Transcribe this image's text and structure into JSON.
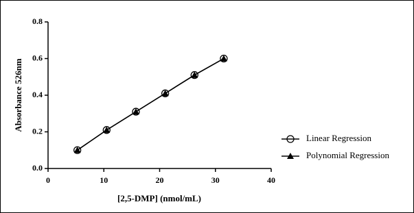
{
  "chart_data": {
    "type": "line",
    "x_label": "[2,5-DMP] (nmol/mL)",
    "y_label": "Absorbance 526nm",
    "x": [
      5.25,
      10.5,
      15.75,
      21,
      26.25,
      31.5
    ],
    "series": [
      {
        "name": "Linear Regression",
        "color": "#000000",
        "marker": "circle",
        "values": [
          0.1,
          0.21,
          0.31,
          0.41,
          0.51,
          0.6
        ]
      },
      {
        "name": "Polynomial Regression",
        "color": "#000000",
        "marker": "triangle",
        "values": [
          0.1,
          0.21,
          0.31,
          0.41,
          0.51,
          0.6
        ]
      }
    ],
    "xlim": [
      0,
      40
    ],
    "xticks": [
      0,
      10,
      20,
      30,
      40
    ],
    "ylim": [
      0,
      0.8
    ],
    "yticks": [
      {
        "value": 0,
        "label": "0.0"
      },
      0.2,
      0.4,
      0.6,
      0.8
    ],
    "grid": false
  }
}
